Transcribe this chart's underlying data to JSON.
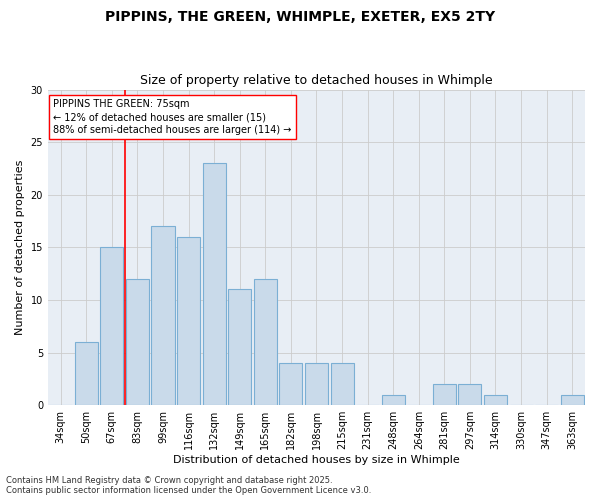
{
  "title1": "PIPPINS, THE GREEN, WHIMPLE, EXETER, EX5 2TY",
  "title2": "Size of property relative to detached houses in Whimple",
  "xlabel": "Distribution of detached houses by size in Whimple",
  "ylabel": "Number of detached properties",
  "categories": [
    "34sqm",
    "50sqm",
    "67sqm",
    "83sqm",
    "99sqm",
    "116sqm",
    "132sqm",
    "149sqm",
    "165sqm",
    "182sqm",
    "198sqm",
    "215sqm",
    "231sqm",
    "248sqm",
    "264sqm",
    "281sqm",
    "297sqm",
    "314sqm",
    "330sqm",
    "347sqm",
    "363sqm"
  ],
  "values": [
    0,
    6,
    15,
    12,
    17,
    16,
    23,
    11,
    12,
    4,
    4,
    4,
    0,
    1,
    0,
    2,
    2,
    1,
    0,
    0,
    1
  ],
  "bar_color": "#c9daea",
  "bar_edge_color": "#7bafd4",
  "bar_linewidth": 0.8,
  "grid_color": "#cccccc",
  "plot_bg_color": "#e8eef5",
  "fig_bg_color": "#ffffff",
  "annotation_text": "PIPPINS THE GREEN: 75sqm\n← 12% of detached houses are smaller (15)\n88% of semi-detached houses are larger (114) →",
  "annotation_box_facecolor": "#ffffff",
  "annotation_box_edgecolor": "red",
  "vline_x_index": 2.5,
  "vline_color": "red",
  "vline_linewidth": 1.2,
  "ylim": [
    0,
    30
  ],
  "yticks": [
    0,
    5,
    10,
    15,
    20,
    25,
    30
  ],
  "footnote": "Contains HM Land Registry data © Crown copyright and database right 2025.\nContains public sector information licensed under the Open Government Licence v3.0.",
  "title_fontsize": 10,
  "subtitle_fontsize": 9,
  "axis_label_fontsize": 8,
  "tick_fontsize": 7,
  "annotation_fontsize": 7,
  "footnote_fontsize": 6,
  "ylabel_fontsize": 8
}
